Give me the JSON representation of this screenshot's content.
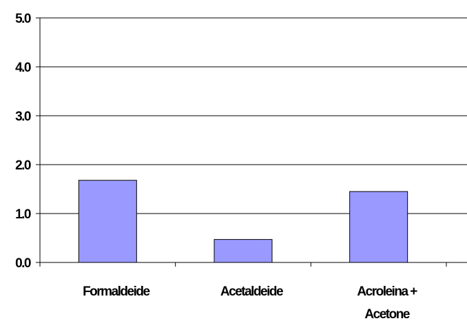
{
  "chart_data": {
    "type": "bar",
    "categories": [
      "Formaldeide",
      "Acetaldeide",
      "Acroleina + Acetone"
    ],
    "category_label_lines": [
      [
        "Formaldeide"
      ],
      [
        "Acetaldeide"
      ],
      [
        "Acroleina +",
        "Acetone"
      ]
    ],
    "values": [
      1.68,
      0.47,
      1.45
    ],
    "ylim": [
      0,
      5
    ],
    "yticks": [
      "0.0",
      "1.0",
      "2.0",
      "3.0",
      "4.0",
      "5.0"
    ],
    "grid": true,
    "legend": "none",
    "bar_color": "#9999ff",
    "bar_stroke": "#000000"
  }
}
